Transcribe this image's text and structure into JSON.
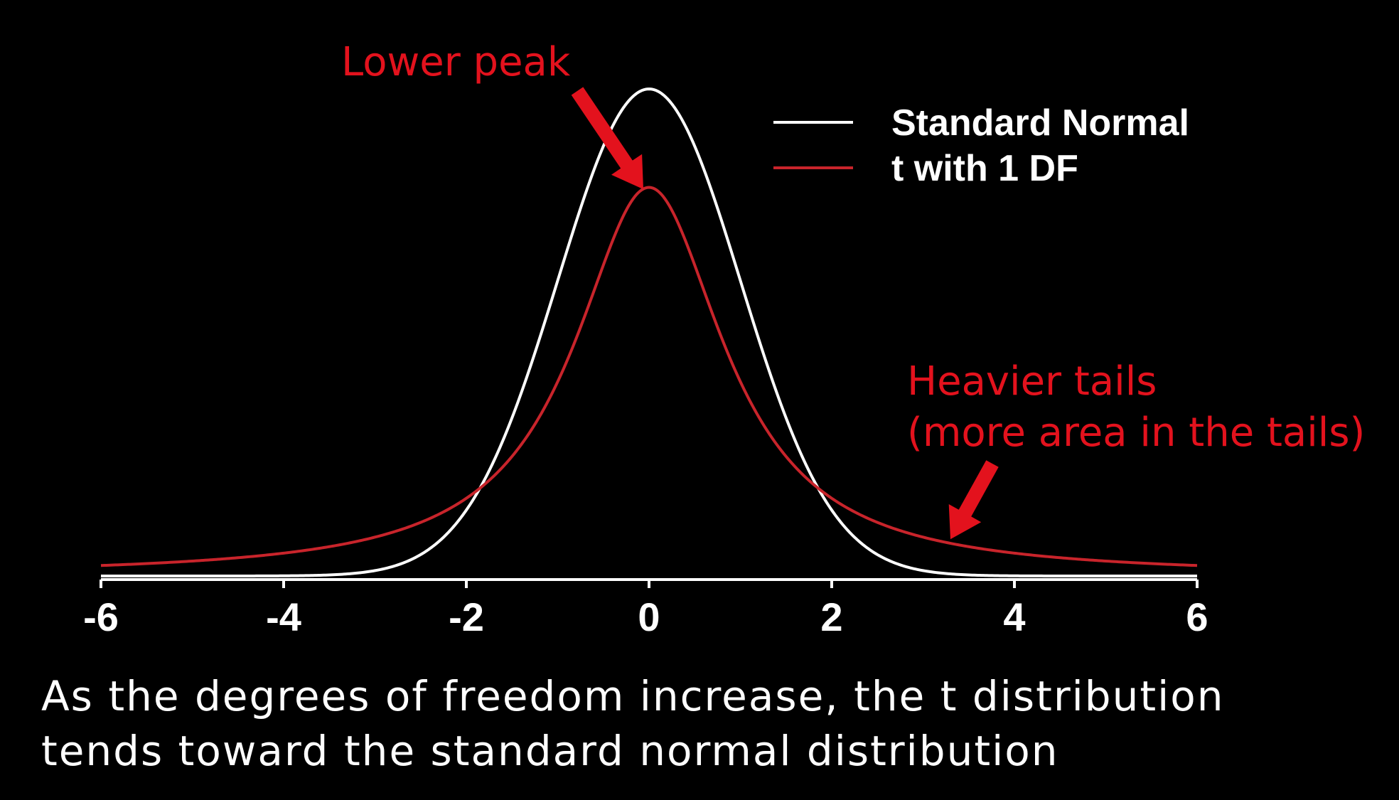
{
  "chart_data": {
    "type": "line",
    "title": "",
    "xlabel": "",
    "ylabel": "",
    "xlim": [
      -6,
      6
    ],
    "x_ticks": [
      "-6",
      "-4",
      "-2",
      "0",
      "2",
      "4",
      "6"
    ],
    "y_axis_visible": false,
    "grid": false,
    "legend_position": "top-right",
    "series": [
      {
        "name": "Standard Normal",
        "color": "#ffffff",
        "distribution": "normal",
        "peak": 0.399
      },
      {
        "name": "t with 1 DF",
        "color": "#c8242b",
        "distribution": "t",
        "df": 1,
        "peak": 0.318
      }
    ],
    "annotations": [
      {
        "id": "lower-peak",
        "text": "Lower peak",
        "points_to": {
          "x": 0,
          "y": 0.318
        }
      },
      {
        "id": "heavier-tails",
        "lines": [
          "Heavier tails",
          "(more area in the tails)"
        ],
        "points_to": {
          "x": 3.3,
          "y": 0.0266
        }
      }
    ]
  },
  "caption": {
    "line1": "As the degrees of freedom increase, the t distribution",
    "line2": "tends toward the standard normal distribution"
  },
  "colors": {
    "background": "#000000",
    "accent": "#e3121d",
    "axis": "#ffffff"
  }
}
